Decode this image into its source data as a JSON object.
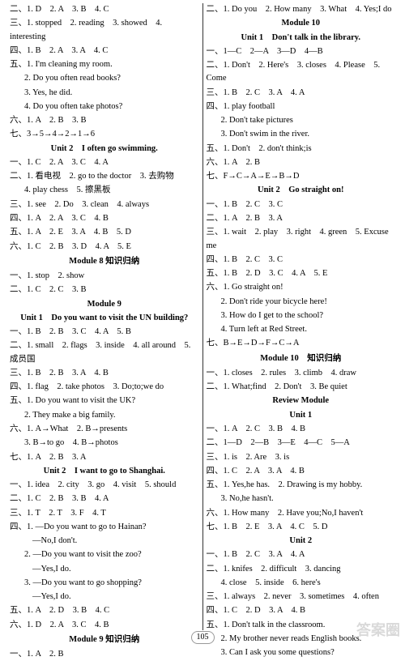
{
  "leftCol": {
    "l1": "二、1. D　2. A　3. B　4. C",
    "l2": "三、1. stopped　2. reading　3. showed　4. interesting",
    "l3": "四、1. B　2. A　3. A　4. C",
    "l4": "五、1. I'm cleaning my room.",
    "l5": "2. Do you often read books?",
    "l6": "3. Yes, he did.",
    "l7": "4. Do you often take photos?",
    "l8": "六、1. A　2. B　3. B",
    "l9": "七、3→5→4→2→1→6",
    "t1": "Unit 2　I often go swimming.",
    "l10": "一、1. C　2. A　3. C　4. A",
    "l11": "二、1. 看电视　2. go to the doctor　3. 去购物",
    "l12": "4. play chess　5. 擦黑板",
    "l13": "三、1. see　2. Do　3. clean　4. always",
    "l14": "四、1. A　2. A　3. C　4. B",
    "l15": "五、1. A　2. E　3. A　4. B　5. D",
    "l16": "六、1. C　2. B　3. D　4. A　5. E",
    "t2": "Module 8 知识归纳",
    "l17": "一、1. stop　2. show",
    "l18": "二、1. C　2. C　3. B",
    "t3": "Module 9",
    "t4": "Unit 1　Do you want to visit the UN building?",
    "l19": "一、1. B　2. B　3. C　4. A　5. B",
    "l20": "二、1. small　2. flags　3. inside　4. all around　5. 成员国",
    "l21": "三、1. B　2. B　3. A　4. B",
    "l22": "四、1. flag　2. take photos　3. Do;to;we do",
    "l23": "五、1. Do you want to visit the UK?",
    "l24": "2. They make a big family.",
    "l25": "六、1. A→What　2. B→presents",
    "l26": "3. B→to go　4. B→photos",
    "l27": "七、1. A　2. B　3. A",
    "t5": "Unit 2　I want to go to Shanghai.",
    "l28": "一、1. idea　2. city　3. go　4. visit　5. should",
    "l29": "二、1. C　2. B　3. B　4. A",
    "l30": "三、1. T　2. T　3. F　4. T",
    "l31": "四、1. —Do you want to go to Hainan?",
    "l32": "—No,I don't.",
    "l33": "2. —Do you want to visit the zoo?",
    "l34": "—Yes,I do.",
    "l35": "3. —Do you want to go shopping?",
    "l36": "—Yes,I do.",
    "l37": "五、1. A　2. D　3. B　4. C",
    "l38": "六、1. D　2. A　3. C　4. B",
    "t6": "Module 9 知识归纳",
    "l39": "一、1. A　2. B"
  },
  "rightCol": {
    "r1": "二、1. Do you　2. How many　3. What　4. Yes;I do",
    "t1": "Module 10",
    "t2": "Unit 1　Don't talk in the library.",
    "r2": "一、1—C　2—A　3—D　4—B",
    "r3": "二、1. Don't　2. Here's　3. closes　4. Please　5. Come",
    "r4": "三、1. B　2. C　3. A　4. A",
    "r5": "四、1. play football",
    "r6": "2. Don't take pictures",
    "r7": "3. Don't swim in the river.",
    "r8": "五、1. Don't　2. don't think;is",
    "r9": "六、1. A　2. B",
    "r10": "七、F→C→A→E→B→D",
    "t3": "Unit 2　Go straight on!",
    "r11": "一、1. B　2. C　3. C",
    "r12": "二、1. A　2. B　3. A",
    "r13": "三、1. wait　2. play　3. right　4. green　5. Excuse me",
    "r14": "四、1. B　2. C　3. C",
    "r15": "五、1. B　2. D　3. C　4. A　5. E",
    "r16": "六、1. Go straight on!",
    "r17": "2. Don't ride your bicycle here!",
    "r18": "3. How do I get to the school?",
    "r19": "4. Turn left at Red Street.",
    "r20": "七、B→E→D→F→C→A",
    "t4": "Module 10　知识归纳",
    "r21": "一、1. closes　2. rules　3. climb　4. draw",
    "r22": "二、1. What;find　2. Don't　3. Be quiet",
    "t5": "Review Module",
    "t6": "Unit 1",
    "r23": "一、1. A　2. C　3. B　4. B",
    "r24": "二、1—D　2—B　3—E　4—C　5—A",
    "r25": "三、1. is　2. Are　3. is",
    "r26": "四、1. C　2. A　3. A　4. B",
    "r27": "五、1. Yes,he has.　2. Drawing is my hobby.",
    "r28": "3. No,he hasn't.",
    "r29": "六、1. How many　2. Have you;No,I haven't",
    "r30": "七、1. B　2. E　3. A　4. C　5. D",
    "t7": "Unit 2",
    "r31": "一、1. B　2. C　3. A　4. A",
    "r32": "二、1. knifes　2. difficult　3. dancing",
    "r33": "4. close　5. inside　6. here's",
    "r34": "三、1. always　2. never　3. sometimes　4. often",
    "r35": "四、1. C　2. D　3. A　4. B",
    "r36": "五、1. Don't talk in the classroom.",
    "r37": "2. My brother never reads English books.",
    "r38": "3. Can I ask you some questions?"
  },
  "pageNumber": "105",
  "watermark": "答案圈"
}
